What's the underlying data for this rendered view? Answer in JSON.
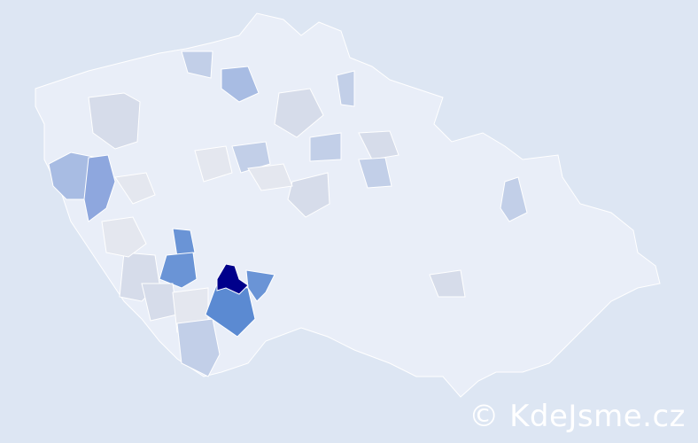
{
  "map": {
    "colors": {
      "background": "#dde6f3",
      "base": "#e9eef8",
      "level1": "#e4e7ef",
      "level2": "#d6dcea",
      "level3": "#c2cfe8",
      "level4": "#a8bce3",
      "level5": "#8ea7de",
      "level6": "#6a94d6",
      "level7": "#5b8ad2",
      "max": "#00008b"
    }
  },
  "watermark": {
    "text": "© KdeJsme.cz"
  }
}
